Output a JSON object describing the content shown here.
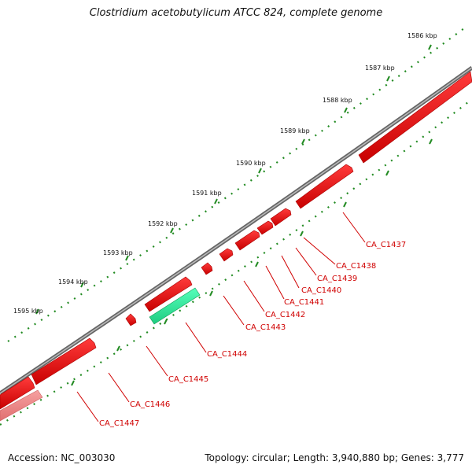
{
  "header": {
    "title": "Clostridium acetobutylicum ATCC 824, complete genome"
  },
  "footer": {
    "accession": "Accession: NC_003030",
    "stats": "Topology: circular; Length: 3,940,880 bp; Genes: 3,777"
  },
  "ticks": [
    "1586 kbp",
    "1587 kbp",
    "1588 kbp",
    "1589 kbp",
    "1590 kbp",
    "1591 kbp",
    "1592 kbp",
    "1593 kbp",
    "1594 kbp",
    "1595 kbp"
  ],
  "genes": [
    "CA_C1437",
    "CA_C1438",
    "CA_C1439",
    "CA_C1440",
    "CA_C1441",
    "CA_C1442",
    "CA_C1443",
    "CA_C1444",
    "CA_C1445",
    "CA_C1446",
    "CA_C1447"
  ],
  "colors": {
    "cds": "#ee0000",
    "rna": "#33ee99",
    "backbone": "#888888",
    "ticks": "#228b22",
    "label": "#d00000"
  }
}
